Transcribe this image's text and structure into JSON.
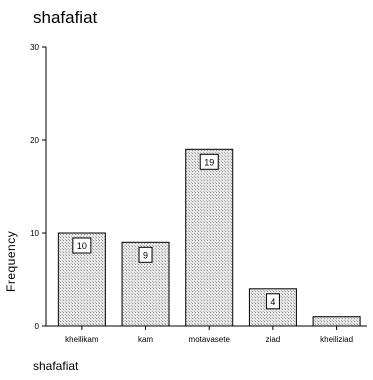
{
  "chart_data": {
    "type": "bar",
    "title": "shafafiat",
    "xlabel": "shafafiat",
    "ylabel": "Frequency",
    "categories": [
      "kheilikam",
      "kam",
      "motavasete",
      "ziad",
      "kheiliziad"
    ],
    "values": [
      10,
      9,
      19,
      4,
      1
    ],
    "data_labels": [
      "10",
      "9",
      "19",
      "4",
      ""
    ],
    "ylim": [
      0,
      30
    ],
    "yticks": [
      0,
      10,
      20,
      30
    ],
    "grid": false,
    "legend": "none",
    "colors": {
      "bar_fill": "#d8d8d8",
      "bar_stroke": "#000000",
      "axis": "#000000",
      "label_box_fill": "#ffffff"
    }
  }
}
